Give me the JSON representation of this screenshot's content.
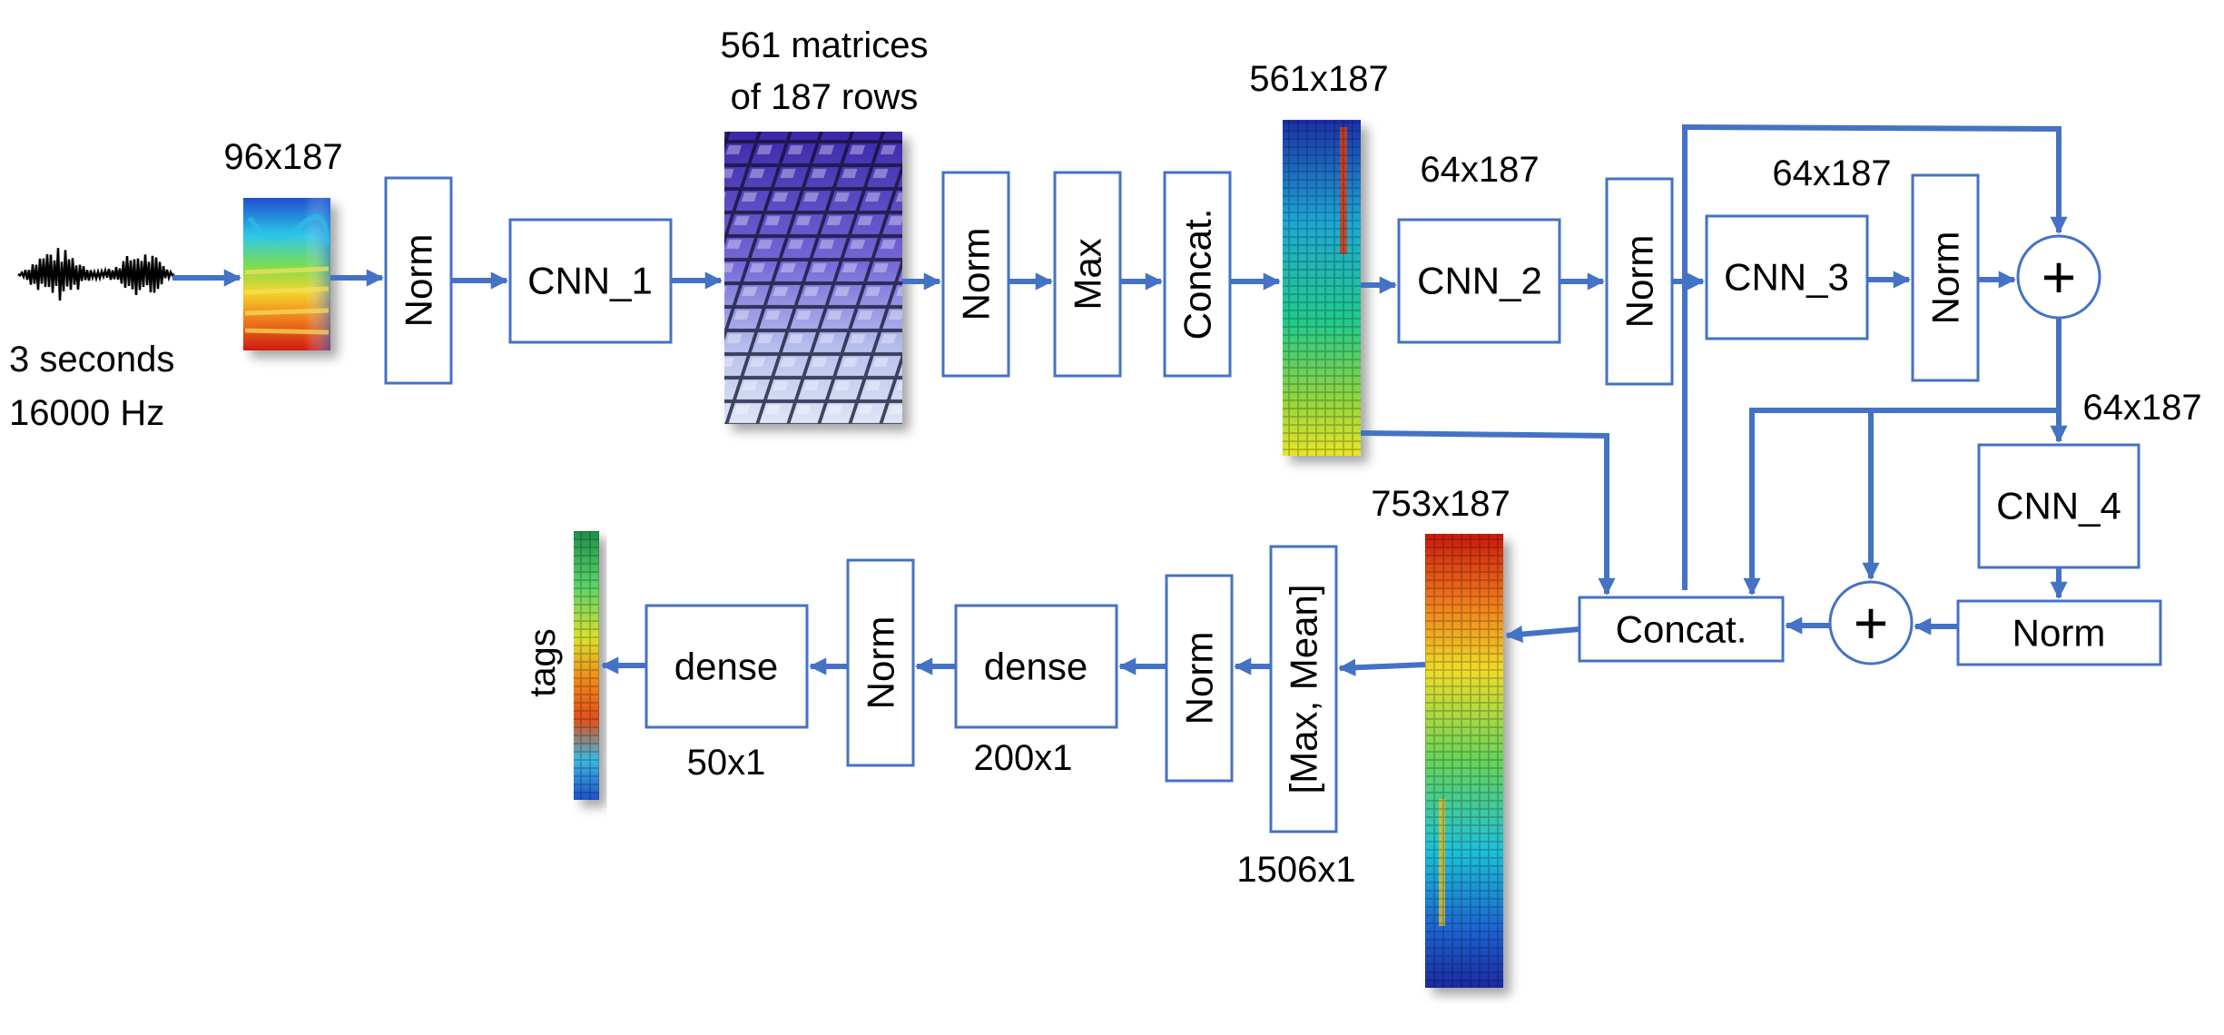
{
  "colors": {
    "accent": "#4472C4",
    "text": "#000000"
  },
  "input": {
    "line1": "3 seconds",
    "line2": "16000 Hz"
  },
  "dims": {
    "spectrogram": "96x187",
    "matrices_line1": "561 matrices",
    "matrices_line2": "of 187 rows",
    "concat_top": "561x187",
    "cnn2_out": "64x187",
    "cnn3_out": "64x187",
    "cnn4_in": "64x187",
    "concat_bottom": "753x187",
    "pool_out": "1506x1",
    "dense1_out": "200x1",
    "dense2_out": "50x1"
  },
  "blocks": {
    "norm": "Norm",
    "cnn1": "CNN_1",
    "max": "Max",
    "concat": "Concat.",
    "cnn2": "CNN_2",
    "cnn3": "CNN_3",
    "cnn4": "CNN_4",
    "plus": "+",
    "pool": "[Max, Mean]",
    "dense": "dense"
  },
  "output": {
    "label": "tags"
  }
}
